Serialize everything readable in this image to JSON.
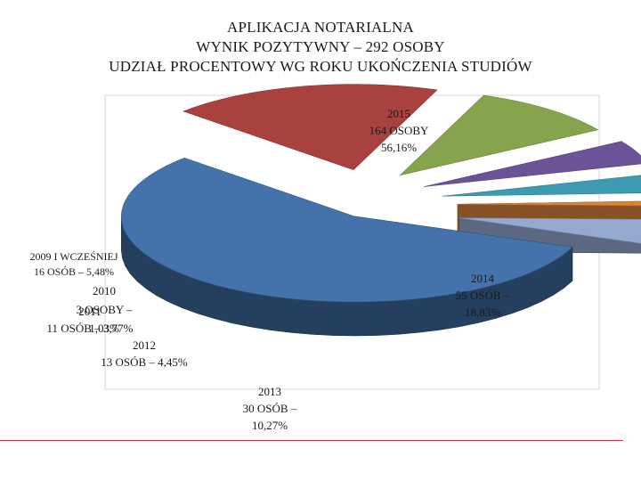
{
  "title_lines": [
    "APLIKACJA NOTARIALNA",
    "WYNIK POZYTYWNY – 292 OSOBY",
    "UDZIAŁ PROCENTOWY WG ROKU UKOŃCZENIA STUDIÓW"
  ],
  "chart_data": {
    "type": "pie",
    "title": "APLIKACJA NOTARIALNA WYNIK POZYTYWNY – 292 OSOBY UDZIAŁ PROCENTOWY WG ROKU UKOŃCZENIA STUDIÓW",
    "total": 292,
    "slices": [
      {
        "label": "2015",
        "count": 164,
        "percent": 56.16,
        "text": [
          "2015",
          "164 OSOBY",
          "56,16%"
        ],
        "color": "#4472aa"
      },
      {
        "label": "2014",
        "count": 55,
        "percent": 18.83,
        "text": [
          "2014",
          "55 OSÓB –",
          "18,83%"
        ],
        "color": "#a9413f"
      },
      {
        "label": "2013",
        "count": 30,
        "percent": 10.27,
        "text": [
          "2013",
          "30 OSÓB –",
          "10,27%"
        ],
        "color": "#86a34e"
      },
      {
        "label": "2012",
        "count": 13,
        "percent": 4.45,
        "text": [
          "2012",
          "13 OSÓB – 4,45%"
        ],
        "color": "#6a5396"
      },
      {
        "label": "2011",
        "count": 11,
        "percent": 3.77,
        "text": [
          "2011",
          "11 OSÓB – 3,77%"
        ],
        "color": "#3c9ab2"
      },
      {
        "label": "2010",
        "count": 3,
        "percent": 1.03,
        "text": [
          "2010",
          "3 OSOBY –",
          "1,03%"
        ],
        "color": "#d8843b"
      },
      {
        "label": "2009 I WCZEŚNIEJ",
        "count": 16,
        "percent": 5.48,
        "text": [
          "2009 I WCZEŚNIEJ",
          "16 OSÓB – 5,48%"
        ],
        "color": "#94a8d0"
      }
    ]
  }
}
